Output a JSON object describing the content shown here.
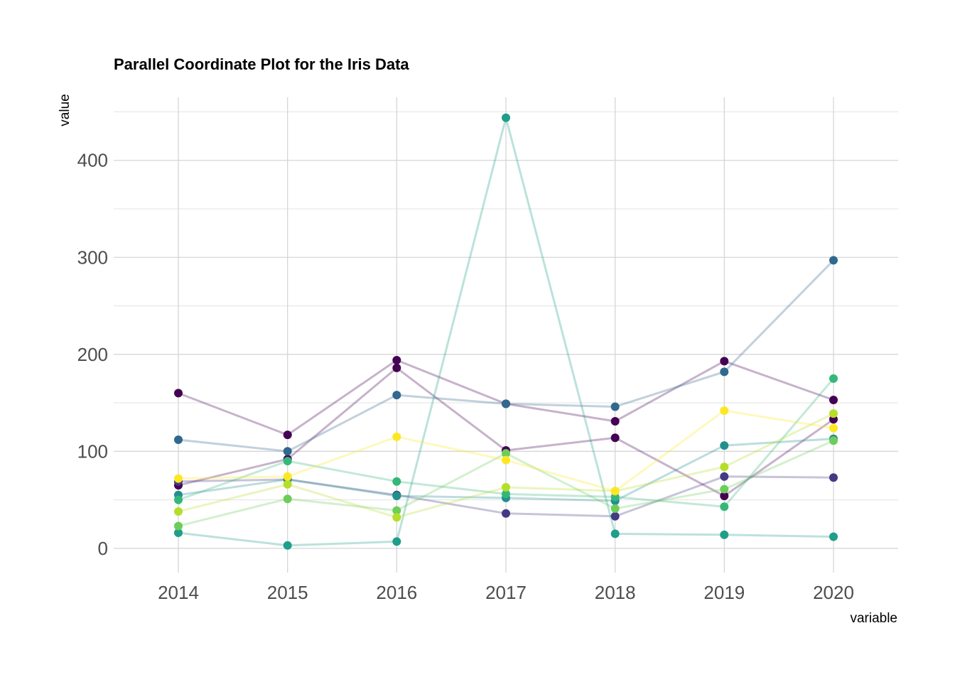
{
  "chart_data": {
    "type": "line",
    "title": "Parallel Coordinate Plot for the Iris Data",
    "xlabel": "variable",
    "ylabel": "value",
    "categories": [
      "2014",
      "2015",
      "2016",
      "2017",
      "2018",
      "2019",
      "2020"
    ],
    "y_ticks": [
      "0",
      "100",
      "200",
      "300",
      "400"
    ],
    "ylim": [
      -25,
      465
    ],
    "grid": true,
    "legend": "none",
    "series": [
      {
        "color": "#440154",
        "values": [
          160,
          117,
          194,
          149,
          131,
          193,
          153
        ]
      },
      {
        "color": "#440154",
        "values": [
          65,
          92,
          186,
          101,
          114,
          54,
          133
        ]
      },
      {
        "color": "#31688e",
        "values": [
          112,
          100,
          158,
          149,
          146,
          182,
          297
        ]
      },
      {
        "color": "#443a83",
        "values": [
          69,
          71,
          55,
          36,
          33,
          74,
          73
        ]
      },
      {
        "color": "#21908d",
        "values": [
          55,
          71,
          54,
          52,
          49,
          106,
          113
        ]
      },
      {
        "color": "#1f9e89",
        "values": [
          16,
          3,
          7,
          444,
          15,
          14,
          12
        ]
      },
      {
        "color": "#35b779",
        "values": [
          50,
          90,
          69,
          56,
          53,
          43,
          175
        ]
      },
      {
        "color": "#6ccd5a",
        "values": [
          23,
          51,
          39,
          98,
          41,
          61,
          111
        ]
      },
      {
        "color": "#b5de2b",
        "values": [
          38,
          66,
          32,
          63,
          59,
          84,
          139
        ]
      },
      {
        "color": "#fde725",
        "values": [
          72,
          74,
          115,
          91,
          59,
          142,
          124
        ]
      }
    ]
  }
}
